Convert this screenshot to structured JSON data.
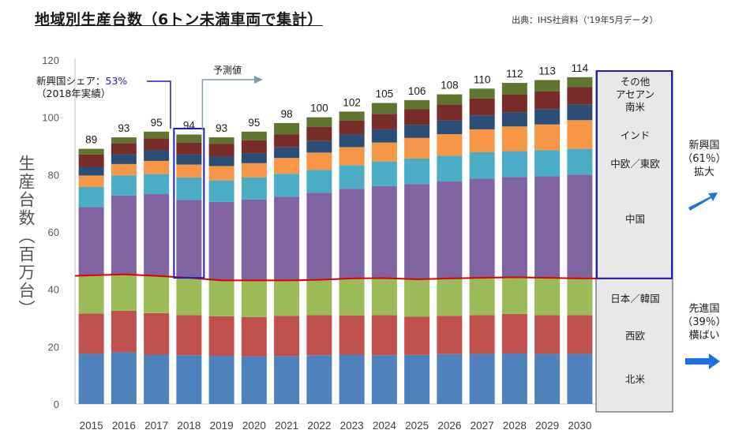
{
  "title": "地域別生産台数（6トン未満車両で集計）",
  "source": "出典：IHS社資料（'19年5月データ）",
  "forecast_label": "予測値",
  "share_annotation": {
    "label": "新興国シェア：",
    "value": "53%",
    "sub": "（2018年実績）"
  },
  "right_panel": {
    "emerging_regions": [
      "その他",
      "アセアン",
      "南米",
      "インド",
      "中欧／東欧",
      "中国"
    ],
    "developed_regions": [
      "日本／韓国",
      "西欧",
      "北米"
    ]
  },
  "side_notes": {
    "emerging": [
      "新興国",
      "（61％）",
      "拡大"
    ],
    "developed": [
      "先進国",
      "（39％）",
      "横ばい"
    ]
  },
  "colors": {
    "北米": "#4f81bd",
    "西欧": "#c0504d",
    "日本／韓国": "#9bbb59",
    "中国": "#8064a2",
    "中欧／東欧": "#4bacc6",
    "インド": "#f79646",
    "南米": "#2c4d75",
    "アセアン": "#772c2a",
    "その他": "#5f7530",
    "panel_fill": "#e8e8e8",
    "highlight_box": "#1f1fbf",
    "divider_line": "#e00000",
    "arrow": "#1f70e0"
  },
  "chart_data": {
    "type": "bar",
    "stacked": true,
    "categories": [
      "2015",
      "2016",
      "2017",
      "2018",
      "2019",
      "2020",
      "2021",
      "2022",
      "2023",
      "2024",
      "2025",
      "2026",
      "2027",
      "2028",
      "2029",
      "2030"
    ],
    "totals": [
      89,
      93,
      95,
      94,
      93,
      95,
      98,
      100,
      102,
      105,
      106,
      108,
      110,
      112,
      113,
      114
    ],
    "series": [
      {
        "name": "北米",
        "values": [
          17.5,
          18.0,
          17.2,
          17.0,
          16.8,
          16.6,
          16.7,
          17.0,
          17.2,
          17.0,
          17.1,
          17.4,
          17.5,
          17.6,
          17.5,
          17.5
        ]
      },
      {
        "name": "西欧",
        "values": [
          14.0,
          14.5,
          14.5,
          14.0,
          13.8,
          13.7,
          14.0,
          14.0,
          13.7,
          14.0,
          13.4,
          13.3,
          13.5,
          13.8,
          13.5,
          13.5
        ]
      },
      {
        "name": "日本／韓国",
        "values": [
          13.2,
          12.7,
          13.0,
          13.0,
          12.5,
          12.8,
          12.4,
          12.3,
          12.9,
          12.9,
          13.0,
          13.1,
          13.0,
          12.8,
          13.0,
          12.8
        ]
      },
      {
        "name": "中国",
        "values": [
          24.0,
          27.5,
          28.5,
          27.2,
          27.4,
          28.2,
          29.2,
          30.4,
          31.3,
          32.1,
          33.2,
          33.8,
          34.6,
          35.0,
          35.4,
          36.2
        ]
      },
      {
        "name": "中欧／東欧",
        "values": [
          7.0,
          7.0,
          7.0,
          7.8,
          7.5,
          7.7,
          8.0,
          8.0,
          8.2,
          8.6,
          8.9,
          9.0,
          9.2,
          9.0,
          9.1,
          9.0
        ]
      },
      {
        "name": "インド",
        "values": [
          4.0,
          4.0,
          4.6,
          4.5,
          5.0,
          5.0,
          5.5,
          6.0,
          6.3,
          6.6,
          7.2,
          7.5,
          8.0,
          8.6,
          9.0,
          10.0
        ]
      },
      {
        "name": "南米",
        "values": [
          3.0,
          3.3,
          3.7,
          3.5,
          3.3,
          3.5,
          3.7,
          4.0,
          4.4,
          4.6,
          4.6,
          4.8,
          4.9,
          5.0,
          5.4,
          5.5
        ]
      },
      {
        "name": "アセアン",
        "values": [
          4.3,
          4.0,
          4.2,
          4.2,
          4.5,
          4.5,
          4.5,
          5.0,
          4.9,
          5.4,
          5.4,
          5.6,
          5.9,
          6.2,
          6.1,
          6.0
        ]
      },
      {
        "name": "その他",
        "values": [
          2.0,
          2.0,
          2.3,
          2.8,
          2.2,
          3.0,
          4.0,
          3.3,
          3.1,
          3.8,
          3.2,
          3.5,
          3.4,
          4.0,
          4.0,
          3.5
        ]
      }
    ],
    "developed_total": [
      44.7,
      45.2,
      44.7,
      44.0,
      43.1,
      43.1,
      43.1,
      43.3,
      43.8,
      43.9,
      43.5,
      43.8,
      44.0,
      44.2,
      44.0,
      43.8
    ],
    "ylabel": "生産台数（百万台）",
    "ylim": [
      0,
      120
    ],
    "yticks": [
      0,
      20,
      40,
      60,
      80,
      100,
      120
    ],
    "grid": false,
    "legend": "right"
  }
}
